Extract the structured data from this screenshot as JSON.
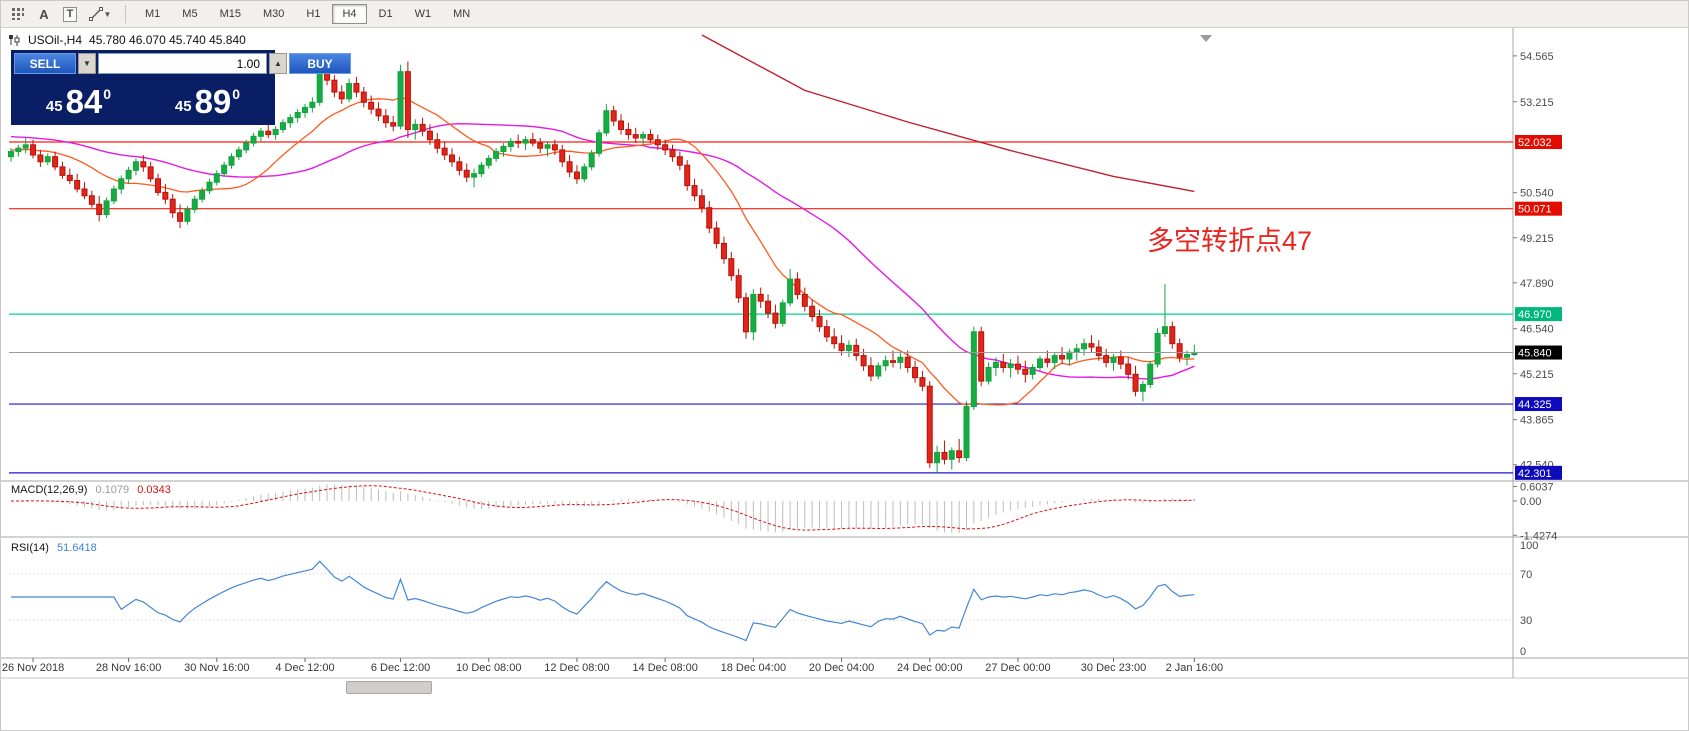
{
  "toolbar": {
    "tools": [
      {
        "name": "grid",
        "glyph": ""
      },
      {
        "name": "text",
        "glyph": "A"
      },
      {
        "name": "text-label",
        "glyph": "T"
      },
      {
        "name": "shapes",
        "glyph": ""
      }
    ],
    "timeframes": [
      "M1",
      "M5",
      "M15",
      "M30",
      "H1",
      "H4",
      "D1",
      "W1",
      "MN"
    ],
    "active_timeframe": "H4"
  },
  "header": {
    "symbol": "USOil-,H4",
    "ohlc_text": "45.780 46.070 45.740 45.840"
  },
  "trade_panel": {
    "sell_label": "SELL",
    "buy_label": "BUY",
    "volume": "1.00",
    "sell_price": {
      "prefix": "45",
      "big": "84",
      "sup": "0"
    },
    "buy_price": {
      "prefix": "45",
      "big": "89",
      "sup": "0"
    }
  },
  "annotation": {
    "text": "多空转折点47"
  },
  "macd_label": {
    "name": "MACD(12,26,9)",
    "main": "0.1079",
    "signal": "0.0343"
  },
  "rsi_label": {
    "name": "RSI(14)",
    "value": "51.6418"
  },
  "chart_data": {
    "type": "candlestick",
    "symbol": "USOil-",
    "timeframe": "H4",
    "current_price": 45.84,
    "colors": {
      "up": "#13a33e",
      "up_fill": "#16ab43",
      "down": "#b81208",
      "down_fill": "#e1251b",
      "ma_fast": "#ff5a1f",
      "ma_slow": "#e31ae3",
      "ma_trend": "#c2202e",
      "hline_red": "#ff1b12",
      "hline_green": "#00d68d",
      "hline_blue": "#1d1acd",
      "label_red": "#e00d00",
      "label_green": "#00b87c",
      "label_blue": "#0f0bbd",
      "label_black": "#000000",
      "rsi": "#4387d6",
      "macd_hist": "#bdbdbd",
      "macd_signal": "#dd0f0f",
      "annotation": "#e8251f"
    },
    "price_axis_ticks": [
      54.565,
      53.215,
      50.54,
      49.215,
      47.89,
      46.54,
      45.215,
      43.865,
      42.54
    ],
    "hlines": [
      {
        "price": 52.032,
        "color_key": "hline_red",
        "bg_key": "label_red"
      },
      {
        "price": 50.071,
        "color_key": "hline_red",
        "bg_key": "label_red"
      },
      {
        "price": 46.97,
        "color_key": "hline_green",
        "bg_key": "label_green"
      },
      {
        "price": 44.325,
        "color_key": "hline_blue",
        "bg_key": "label_blue"
      },
      {
        "price": 42.301,
        "color_key": "hline_blue",
        "bg_key": "label_blue"
      }
    ],
    "ma_fast_period": 13,
    "ma_fast_pad": 51.8,
    "ma_slow_period": 34,
    "ma_slow_pad": 52.2,
    "trend_ma_points": [
      [
        94,
        55.18
      ],
      [
        108,
        53.55
      ],
      [
        122,
        52.62
      ],
      [
        136,
        51.78
      ],
      [
        150,
        51.02
      ],
      [
        161,
        50.58
      ]
    ],
    "macd_axis": [
      {
        "text": "0.6037",
        "v": 0.6037
      },
      {
        "text": "0.00",
        "v": 0
      },
      {
        "text": "-1.4274",
        "v": -1.4274
      }
    ],
    "rsi_levels": [
      {
        "text": "100",
        "v": 100,
        "line": false
      },
      {
        "text": "70",
        "v": 70,
        "line": true
      },
      {
        "text": "30",
        "v": 30,
        "line": true
      },
      {
        "text": "0",
        "v": 0,
        "line": false
      }
    ],
    "x_labels": [
      {
        "i": 3,
        "text": "26 Nov 2018"
      },
      {
        "i": 16,
        "text": "28 Nov 16:00"
      },
      {
        "i": 28,
        "text": "30 Nov 16:00"
      },
      {
        "i": 40,
        "text": "4 Dec 12:00"
      },
      {
        "i": 53,
        "text": "6 Dec 12:00"
      },
      {
        "i": 65,
        "text": "10 Dec 08:00"
      },
      {
        "i": 77,
        "text": "12 Dec 08:00"
      },
      {
        "i": 89,
        "text": "14 Dec 08:00"
      },
      {
        "i": 101,
        "text": "18 Dec 04:00"
      },
      {
        "i": 113,
        "text": "20 Dec 04:00"
      },
      {
        "i": 125,
        "text": "24 Dec 00:00"
      },
      {
        "i": 137,
        "text": "27 Dec 00:00"
      },
      {
        "i": 150,
        "text": "30 Dec 23:00"
      },
      {
        "i": 161,
        "text": "2 Jan 16:00"
      }
    ],
    "candles": [
      [
        51.6,
        51.85,
        51.45,
        51.75
      ],
      [
        51.75,
        51.95,
        51.6,
        51.85
      ],
      [
        51.85,
        52.15,
        51.7,
        51.95
      ],
      [
        51.95,
        52.1,
        51.55,
        51.65
      ],
      [
        51.65,
        51.8,
        51.3,
        51.45
      ],
      [
        51.45,
        51.7,
        51.35,
        51.6
      ],
      [
        51.6,
        51.75,
        51.2,
        51.3
      ],
      [
        51.3,
        51.45,
        50.95,
        51.05
      ],
      [
        51.05,
        51.25,
        50.8,
        50.9
      ],
      [
        50.9,
        51.1,
        50.55,
        50.65
      ],
      [
        50.65,
        50.85,
        50.35,
        50.45
      ],
      [
        50.45,
        50.6,
        50.1,
        50.2
      ],
      [
        50.2,
        50.45,
        49.7,
        49.9
      ],
      [
        49.9,
        50.4,
        49.8,
        50.3
      ],
      [
        50.3,
        50.75,
        50.2,
        50.65
      ],
      [
        50.65,
        51.05,
        50.5,
        50.95
      ],
      [
        50.95,
        51.3,
        50.8,
        51.2
      ],
      [
        51.2,
        51.55,
        51.05,
        51.45
      ],
      [
        51.45,
        51.65,
        51.15,
        51.3
      ],
      [
        51.3,
        51.45,
        50.85,
        50.95
      ],
      [
        50.95,
        51.1,
        50.45,
        50.55
      ],
      [
        50.55,
        50.8,
        50.2,
        50.35
      ],
      [
        50.35,
        50.5,
        49.8,
        49.95
      ],
      [
        49.95,
        50.2,
        49.5,
        49.7
      ],
      [
        49.7,
        50.15,
        49.6,
        50.05
      ],
      [
        50.05,
        50.45,
        49.95,
        50.35
      ],
      [
        50.35,
        50.7,
        50.25,
        50.6
      ],
      [
        50.6,
        50.95,
        50.5,
        50.85
      ],
      [
        50.85,
        51.2,
        50.75,
        51.1
      ],
      [
        51.1,
        51.45,
        51.0,
        51.35
      ],
      [
        51.35,
        51.7,
        51.25,
        51.6
      ],
      [
        51.6,
        51.9,
        51.5,
        51.8
      ],
      [
        51.8,
        52.1,
        51.7,
        52.0
      ],
      [
        52.0,
        52.3,
        51.9,
        52.2
      ],
      [
        52.2,
        52.45,
        52.05,
        52.35
      ],
      [
        52.35,
        52.55,
        52.15,
        52.25
      ],
      [
        52.25,
        52.5,
        52.1,
        52.4
      ],
      [
        52.4,
        52.7,
        52.3,
        52.6
      ],
      [
        52.6,
        52.85,
        52.45,
        52.75
      ],
      [
        52.75,
        53.0,
        52.6,
        52.9
      ],
      [
        52.9,
        53.15,
        52.75,
        53.05
      ],
      [
        53.05,
        53.35,
        52.9,
        53.2
      ],
      [
        53.2,
        54.4,
        53.1,
        54.15
      ],
      [
        54.15,
        54.45,
        53.7,
        53.85
      ],
      [
        53.85,
        54.0,
        53.35,
        53.5
      ],
      [
        53.5,
        53.7,
        53.15,
        53.3
      ],
      [
        53.3,
        53.9,
        53.2,
        53.75
      ],
      [
        53.75,
        53.95,
        53.35,
        53.5
      ],
      [
        53.5,
        53.65,
        53.05,
        53.2
      ],
      [
        53.2,
        53.4,
        52.85,
        53.0
      ],
      [
        53.0,
        53.2,
        52.65,
        52.8
      ],
      [
        52.8,
        53.0,
        52.45,
        52.6
      ],
      [
        52.6,
        52.8,
        52.35,
        52.5
      ],
      [
        52.5,
        54.3,
        52.4,
        54.1
      ],
      [
        54.1,
        54.4,
        52.15,
        52.4
      ],
      [
        52.4,
        52.7,
        52.1,
        52.55
      ],
      [
        52.55,
        52.75,
        52.2,
        52.35
      ],
      [
        52.35,
        52.55,
        51.95,
        52.1
      ],
      [
        52.1,
        52.3,
        51.7,
        51.85
      ],
      [
        51.85,
        52.05,
        51.5,
        51.65
      ],
      [
        51.65,
        51.85,
        51.3,
        51.45
      ],
      [
        51.45,
        51.6,
        51.05,
        51.2
      ],
      [
        51.2,
        51.4,
        50.85,
        51.0
      ],
      [
        51.0,
        51.25,
        50.7,
        51.1
      ],
      [
        51.1,
        51.45,
        51.0,
        51.35
      ],
      [
        51.35,
        51.65,
        51.25,
        51.55
      ],
      [
        51.55,
        51.85,
        51.45,
        51.75
      ],
      [
        51.75,
        52.0,
        51.6,
        51.9
      ],
      [
        51.9,
        52.15,
        51.75,
        52.05
      ],
      [
        52.05,
        52.25,
        51.85,
        52.0
      ],
      [
        52.0,
        52.2,
        51.8,
        52.1
      ],
      [
        52.1,
        52.3,
        51.9,
        52.0
      ],
      [
        52.0,
        52.15,
        51.7,
        51.85
      ],
      [
        51.85,
        52.05,
        51.6,
        51.95
      ],
      [
        51.95,
        52.1,
        51.65,
        51.8
      ],
      [
        51.8,
        51.95,
        51.3,
        51.45
      ],
      [
        51.45,
        51.65,
        51.0,
        51.15
      ],
      [
        51.15,
        51.35,
        50.8,
        50.95
      ],
      [
        50.95,
        51.4,
        50.85,
        51.3
      ],
      [
        51.3,
        51.8,
        51.2,
        51.7
      ],
      [
        51.7,
        52.4,
        51.6,
        52.3
      ],
      [
        52.3,
        53.15,
        52.2,
        52.95
      ],
      [
        52.95,
        53.1,
        52.5,
        52.65
      ],
      [
        52.65,
        52.85,
        52.25,
        52.4
      ],
      [
        52.4,
        52.6,
        52.1,
        52.25
      ],
      [
        52.25,
        52.45,
        52.0,
        52.15
      ],
      [
        52.15,
        52.35,
        51.95,
        52.25
      ],
      [
        52.25,
        52.4,
        52.0,
        52.1
      ],
      [
        52.1,
        52.25,
        51.8,
        51.95
      ],
      [
        51.95,
        52.1,
        51.65,
        51.8
      ],
      [
        51.8,
        51.95,
        51.45,
        51.6
      ],
      [
        51.6,
        51.75,
        51.2,
        51.35
      ],
      [
        51.35,
        51.5,
        50.6,
        50.75
      ],
      [
        50.75,
        50.95,
        50.3,
        50.45
      ],
      [
        50.45,
        50.65,
        49.95,
        50.1
      ],
      [
        50.1,
        50.3,
        49.35,
        49.5
      ],
      [
        49.5,
        49.7,
        48.9,
        49.05
      ],
      [
        49.05,
        49.25,
        48.45,
        48.6
      ],
      [
        48.6,
        48.8,
        47.95,
        48.1
      ],
      [
        48.1,
        48.3,
        47.3,
        47.45
      ],
      [
        47.45,
        47.6,
        46.25,
        46.45
      ],
      [
        46.45,
        47.7,
        46.2,
        47.55
      ],
      [
        47.55,
        47.75,
        47.15,
        47.35
      ],
      [
        47.35,
        47.55,
        46.85,
        47.0
      ],
      [
        47.0,
        47.25,
        46.55,
        46.7
      ],
      [
        46.7,
        47.4,
        46.6,
        47.3
      ],
      [
        47.3,
        48.3,
        47.2,
        48.0
      ],
      [
        48.0,
        48.2,
        47.4,
        47.55
      ],
      [
        47.55,
        47.75,
        47.05,
        47.2
      ],
      [
        47.2,
        47.4,
        46.75,
        46.9
      ],
      [
        46.9,
        47.1,
        46.45,
        46.6
      ],
      [
        46.6,
        46.8,
        46.15,
        46.3
      ],
      [
        46.3,
        46.55,
        45.95,
        46.1
      ],
      [
        46.1,
        46.35,
        45.75,
        45.9
      ],
      [
        45.9,
        46.2,
        45.7,
        46.05
      ],
      [
        46.05,
        46.25,
        45.6,
        45.75
      ],
      [
        45.75,
        45.95,
        45.3,
        45.45
      ],
      [
        45.45,
        45.7,
        45.0,
        45.15
      ],
      [
        45.15,
        45.55,
        45.05,
        45.45
      ],
      [
        45.45,
        45.75,
        45.3,
        45.6
      ],
      [
        45.6,
        45.9,
        45.4,
        45.55
      ],
      [
        45.55,
        45.85,
        45.35,
        45.7
      ],
      [
        45.7,
        45.9,
        45.25,
        45.4
      ],
      [
        45.4,
        45.6,
        44.95,
        45.1
      ],
      [
        45.1,
        45.3,
        44.7,
        44.85
      ],
      [
        44.85,
        45.0,
        42.45,
        42.6
      ],
      [
        42.6,
        43.1,
        42.3,
        42.9
      ],
      [
        42.9,
        43.25,
        42.55,
        42.7
      ],
      [
        42.7,
        43.05,
        42.4,
        42.95
      ],
      [
        42.95,
        43.3,
        42.6,
        42.75
      ],
      [
        42.75,
        44.4,
        42.65,
        44.25
      ],
      [
        44.25,
        46.6,
        44.15,
        46.45
      ],
      [
        46.45,
        46.6,
        44.85,
        45.0
      ],
      [
        45.0,
        45.55,
        44.9,
        45.4
      ],
      [
        45.4,
        45.7,
        45.15,
        45.55
      ],
      [
        45.55,
        45.8,
        45.25,
        45.4
      ],
      [
        45.4,
        45.65,
        45.1,
        45.5
      ],
      [
        45.5,
        45.75,
        45.2,
        45.35
      ],
      [
        45.35,
        45.6,
        44.95,
        45.2
      ],
      [
        45.2,
        45.5,
        45.05,
        45.4
      ],
      [
        45.4,
        45.75,
        45.3,
        45.65
      ],
      [
        45.65,
        45.9,
        45.4,
        45.55
      ],
      [
        45.55,
        45.85,
        45.35,
        45.75
      ],
      [
        45.75,
        46.0,
        45.5,
        45.65
      ],
      [
        45.65,
        45.95,
        45.45,
        45.85
      ],
      [
        45.85,
        46.1,
        45.6,
        45.95
      ],
      [
        45.95,
        46.25,
        45.75,
        46.1
      ],
      [
        46.1,
        46.35,
        45.85,
        46.0
      ],
      [
        46.0,
        46.2,
        45.6,
        45.75
      ],
      [
        45.75,
        45.95,
        45.4,
        45.55
      ],
      [
        45.55,
        45.8,
        45.3,
        45.7
      ],
      [
        45.7,
        45.9,
        45.35,
        45.5
      ],
      [
        45.5,
        45.7,
        45.05,
        45.2
      ],
      [
        45.2,
        45.45,
        44.55,
        44.7
      ],
      [
        44.7,
        45.0,
        44.4,
        44.9
      ],
      [
        44.9,
        45.6,
        44.8,
        45.5
      ],
      [
        45.5,
        46.55,
        45.4,
        46.4
      ],
      [
        46.4,
        47.85,
        46.3,
        46.6
      ],
      [
        46.6,
        46.75,
        45.95,
        46.1
      ],
      [
        46.1,
        46.25,
        45.55,
        45.7
      ],
      [
        45.7,
        45.9,
        45.45,
        45.78
      ],
      [
        45.78,
        46.07,
        45.74,
        45.84
      ]
    ]
  }
}
